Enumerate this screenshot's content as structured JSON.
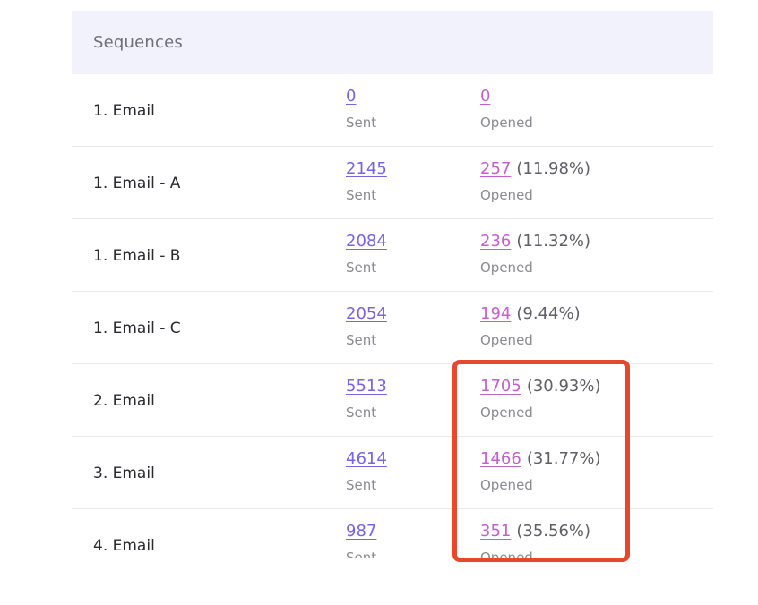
{
  "table": {
    "header": "Sequences",
    "rows": [
      {
        "label": "1. Email",
        "sent": "0",
        "sent_caption": "Sent",
        "opened": "0",
        "opened_pct": "",
        "opened_caption": "Opened"
      },
      {
        "label": "1. Email - A",
        "sent": "2145",
        "sent_caption": "Sent",
        "opened": "257",
        "opened_pct": "(11.98%)",
        "opened_caption": "Opened"
      },
      {
        "label": "1. Email - B",
        "sent": "2084",
        "sent_caption": "Sent",
        "opened": "236",
        "opened_pct": "(11.32%)",
        "opened_caption": "Opened"
      },
      {
        "label": "1. Email - C",
        "sent": "2054",
        "sent_caption": "Sent",
        "opened": "194",
        "opened_pct": "(9.44%)",
        "opened_caption": "Opened"
      },
      {
        "label": "2. Email",
        "sent": "5513",
        "sent_caption": "Sent",
        "opened": "1705",
        "opened_pct": "(30.93%)",
        "opened_caption": "Opened"
      },
      {
        "label": "3. Email",
        "sent": "4614",
        "sent_caption": "Sent",
        "opened": "1466",
        "opened_pct": "(31.77%)",
        "opened_caption": "Opened"
      },
      {
        "label": "4. Email",
        "sent": "987",
        "sent_caption": "Sent",
        "opened": "351",
        "opened_pct": "(35.56%)",
        "opened_caption": "Opened"
      }
    ]
  },
  "colors": {
    "header_bg": "#f1f2fb",
    "sent_link": "#7663e6",
    "opened_link": "#c45fce",
    "highlight": "#e5482a"
  }
}
